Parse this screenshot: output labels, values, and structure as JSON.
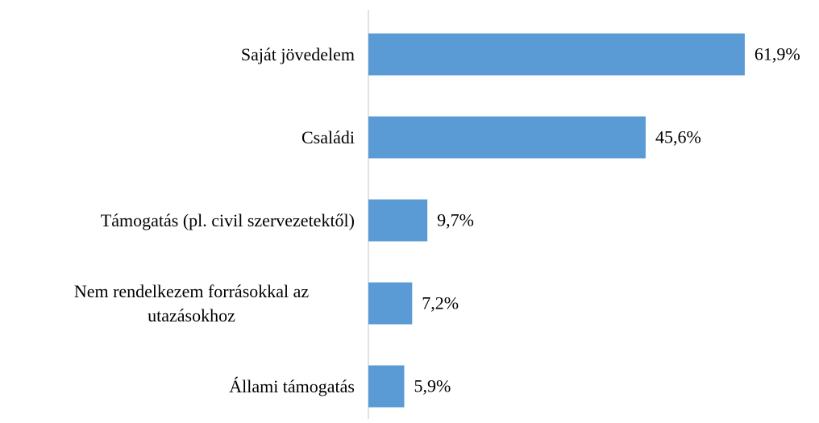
{
  "chart_data": {
    "type": "bar",
    "orientation": "horizontal",
    "categories": [
      "Saját jövedelem",
      "Családi",
      "Támogatás (pl. civil szervezetektől)",
      "Nem rendelkezem forrásokkal az utazásokhoz",
      "Állami támogatás"
    ],
    "values": [
      61.9,
      45.6,
      9.7,
      7.2,
      5.9
    ],
    "value_labels": [
      "61,9%",
      "45,6%",
      "9,7%",
      "7,2%",
      "5,9%"
    ],
    "color": "#5b9bd5",
    "xlim": [
      0,
      70
    ]
  }
}
